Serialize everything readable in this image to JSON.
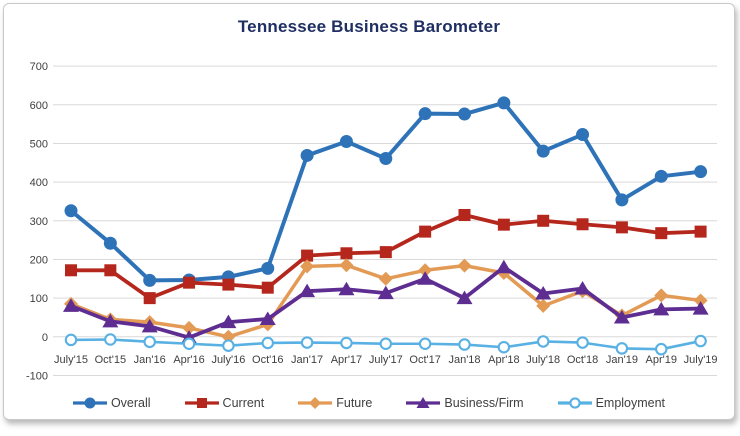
{
  "title": "Tennessee Business Barometer",
  "colors": {
    "title": "#1f2f63",
    "gridline": "#d9d9d9",
    "axis_text": "#3f3f3f",
    "overall": "#2e73b8",
    "current": "#b5271d",
    "future": "#e39a55",
    "business_firm": "#5e2d91",
    "employment": "#58b0e3"
  },
  "chart_data": {
    "type": "line",
    "title": "Tennessee Business Barometer",
    "categories": [
      "July'15",
      "Oct'15",
      "Jan'16",
      "Apr'16",
      "July'16",
      "Oct'16",
      "Jan'17",
      "Apr'17",
      "July'17",
      "Oct'17",
      "Jan'18",
      "Apr'18",
      "July'18",
      "Oct'18",
      "Jan'19",
      "Apr'19",
      "July'19"
    ],
    "series": [
      {
        "name": "Overall",
        "color": "#2e73b8",
        "marker": "circle",
        "values": [
          326,
          242,
          146,
          147,
          155,
          177,
          469,
          505,
          461,
          577,
          576,
          605,
          480,
          523,
          354,
          415,
          427
        ]
      },
      {
        "name": "Current",
        "color": "#b5271d",
        "marker": "square",
        "values": [
          172,
          172,
          100,
          140,
          135,
          127,
          210,
          216,
          219,
          272,
          315,
          290,
          300,
          291,
          283,
          268,
          272
        ]
      },
      {
        "name": "Future",
        "color": "#e39a55",
        "marker": "diamond",
        "values": [
          85,
          45,
          38,
          23,
          0,
          32,
          182,
          185,
          150,
          172,
          184,
          165,
          80,
          118,
          55,
          107,
          94
        ]
      },
      {
        "name": "Business/Firm",
        "color": "#5e2d91",
        "marker": "triangle",
        "values": [
          80,
          40,
          27,
          -2,
          38,
          46,
          118,
          123,
          113,
          150,
          100,
          180,
          112,
          125,
          50,
          71,
          73
        ]
      },
      {
        "name": "Employment",
        "color": "#58b0e3",
        "marker": "open-circle",
        "values": [
          -8,
          -7,
          -13,
          -18,
          -23,
          -16,
          -15,
          -16,
          -18,
          -18,
          -20,
          -27,
          -12,
          -15,
          -30,
          -32,
          -11
        ]
      }
    ],
    "xlabel": "",
    "ylabel": "",
    "ylim": [
      -100,
      700
    ],
    "ytick_step": 100,
    "grid": true,
    "legend_position": "bottom"
  }
}
